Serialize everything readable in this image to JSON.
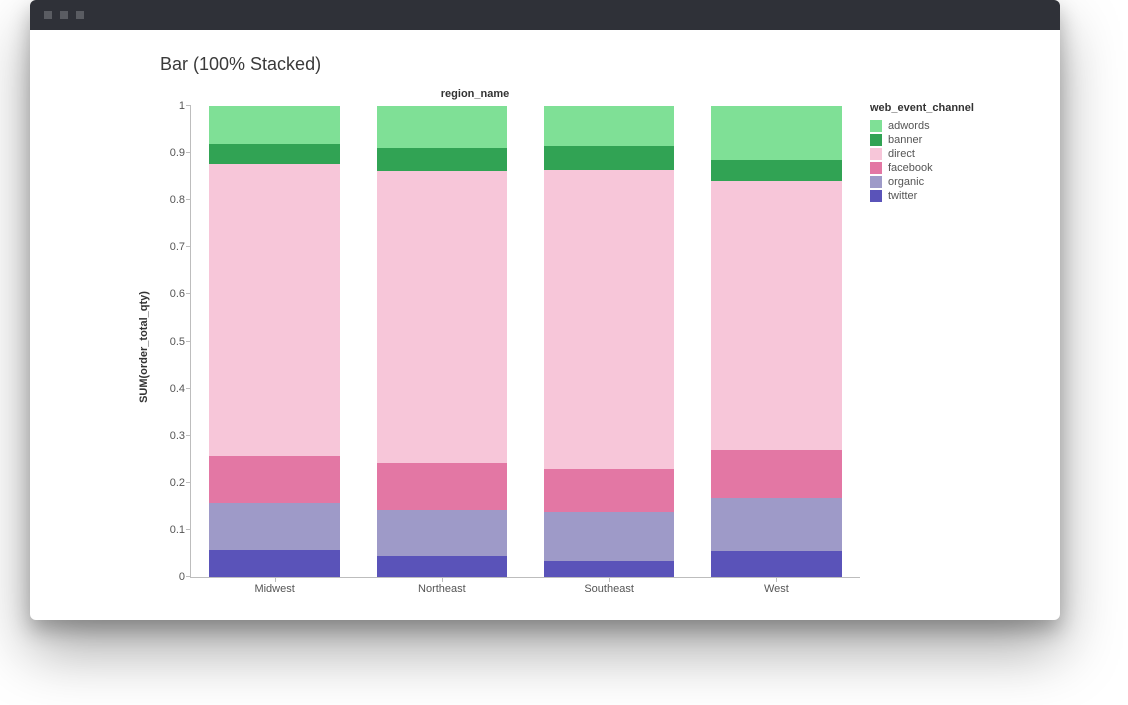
{
  "window": {
    "titlebar_color": "#2f3138",
    "dot_color": "#5a5c62",
    "background": "#ffffff"
  },
  "chart": {
    "type": "bar-100pct-stacked",
    "title": "Bar (100% Stacked)",
    "axis_title_top": "region_name",
    "y_axis_label": "SUM(order_total_qty)",
    "ylim": [
      0,
      1
    ],
    "ytick_step": 0.1,
    "yticks": [
      "0",
      "0.1",
      "0.2",
      "0.3",
      "0.4",
      "0.5",
      "0.6",
      "0.7",
      "0.8",
      "0.9",
      "1"
    ],
    "categories": [
      "Midwest",
      "Northeast",
      "Southeast",
      "West"
    ],
    "series_order": [
      "twitter",
      "organic",
      "facebook",
      "direct",
      "banner",
      "adwords"
    ],
    "series_colors": {
      "adwords": "#7fe096",
      "banner": "#31a354",
      "direct": "#f7c6d9",
      "facebook": "#e377a4",
      "organic": "#9e9ac8",
      "twitter": "#5a53b9"
    },
    "values": {
      "Midwest": {
        "twitter": 0.057,
        "organic": 0.1,
        "facebook": 0.1,
        "direct": 0.62,
        "banner": 0.043,
        "adwords": 0.08
      },
      "Northeast": {
        "twitter": 0.045,
        "organic": 0.098,
        "facebook": 0.1,
        "direct": 0.62,
        "banner": 0.047,
        "adwords": 0.09
      },
      "Southeast": {
        "twitter": 0.035,
        "organic": 0.102,
        "facebook": 0.093,
        "direct": 0.635,
        "banner": 0.05,
        "adwords": 0.085
      },
      "West": {
        "twitter": 0.055,
        "organic": 0.113,
        "facebook": 0.102,
        "direct": 0.57,
        "banner": 0.045,
        "adwords": 0.115
      }
    },
    "legend": {
      "title": "web_event_channel",
      "items": [
        "adwords",
        "banner",
        "direct",
        "facebook",
        "organic",
        "twitter"
      ]
    },
    "bar_width_pct": 78,
    "axis_color": "#bdbdbd",
    "tick_font_size": 11,
    "title_font_size": 18,
    "label_color": "#555"
  }
}
